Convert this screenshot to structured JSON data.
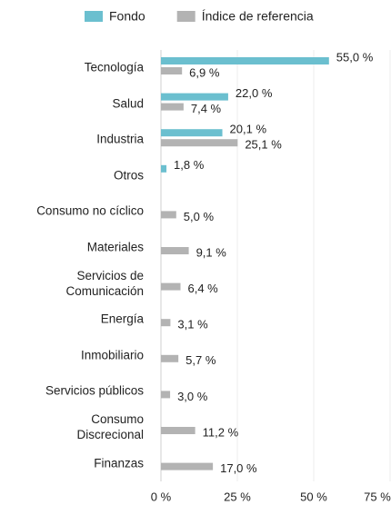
{
  "chart_data": {
    "type": "hbar",
    "categories": [
      "Tecnología",
      "Salud",
      "Industria",
      "Otros",
      "Consumo no cíclico",
      "Materiales",
      "Servicios de\nComunicación",
      "Energía",
      "Inmobiliario",
      "Servicios públicos",
      "Consumo\nDiscrecional",
      "Finanzas"
    ],
    "series": [
      {
        "name": "Fondo",
        "color": "#6bbfcf",
        "values": [
          55.0,
          22.0,
          20.1,
          1.8,
          null,
          null,
          null,
          null,
          null,
          null,
          null,
          null
        ],
        "value_labels": [
          "55,0 %",
          "22,0 %",
          "20,1 %",
          "1,8 %",
          null,
          null,
          null,
          null,
          null,
          null,
          null,
          null
        ]
      },
      {
        "name": "Índice de referencia",
        "color": "#b3b3b3",
        "values": [
          6.9,
          7.4,
          25.1,
          null,
          5.0,
          9.1,
          6.4,
          3.1,
          5.7,
          3.0,
          11.2,
          17.0
        ],
        "value_labels": [
          "6,9 %",
          "7,4 %",
          "25,1 %",
          null,
          "5,0 %",
          "9,1 %",
          "6,4 %",
          "3,1 %",
          "5,7 %",
          "3,0 %",
          "11,2 %",
          "17,0 %"
        ]
      }
    ],
    "xlim": [
      0,
      75
    ],
    "xticks": [
      {
        "value": 0,
        "label": "0 %"
      },
      {
        "value": 25,
        "label": "25 %"
      },
      {
        "value": 50,
        "label": "50 %"
      },
      {
        "value": 75,
        "label": "75 %"
      }
    ],
    "grid": true,
    "legend": "top"
  }
}
